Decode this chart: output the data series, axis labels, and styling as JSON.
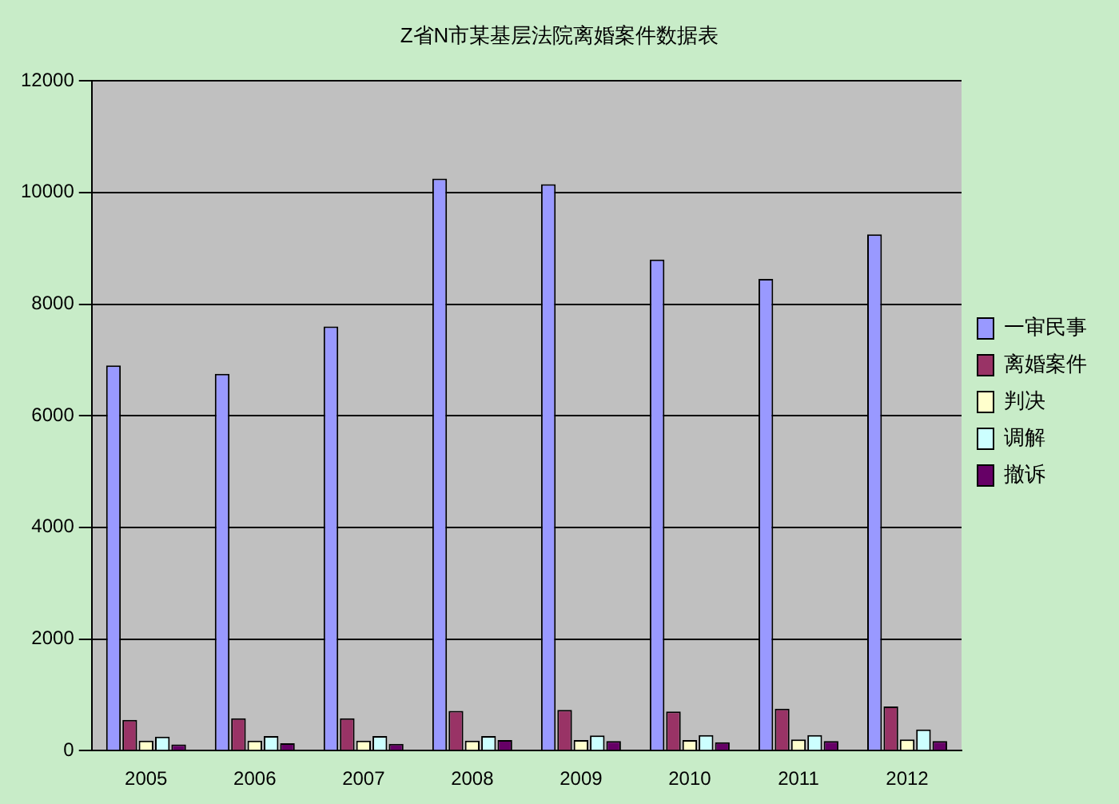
{
  "chart_data": {
    "type": "bar",
    "title": "Z省N市某基层法院离婚案件数据表",
    "categories": [
      "2005",
      "2006",
      "2007",
      "2008",
      "2009",
      "2010",
      "2011",
      "2012"
    ],
    "series": [
      {
        "name": "一审民事",
        "color": "#9999ff",
        "values": [
          6900,
          6750,
          7600,
          10250,
          10150,
          8800,
          8450,
          9250
        ]
      },
      {
        "name": "离婚案件",
        "color": "#993366",
        "values": [
          550,
          580,
          580,
          710,
          730,
          700,
          750,
          790
        ]
      },
      {
        "name": "判决",
        "color": "#ffffcc",
        "values": [
          180,
          180,
          180,
          180,
          190,
          190,
          200,
          200
        ]
      },
      {
        "name": "调解",
        "color": "#ccffff",
        "values": [
          250,
          260,
          260,
          260,
          270,
          280,
          280,
          380
        ]
      },
      {
        "name": "撤诉",
        "color": "#660066",
        "values": [
          110,
          130,
          120,
          190,
          170,
          150,
          170,
          170
        ]
      }
    ],
    "ylim": [
      0,
      12000
    ],
    "yticks": [
      0,
      2000,
      4000,
      6000,
      8000,
      10000,
      12000
    ],
    "grid": "y",
    "legend": "right"
  }
}
